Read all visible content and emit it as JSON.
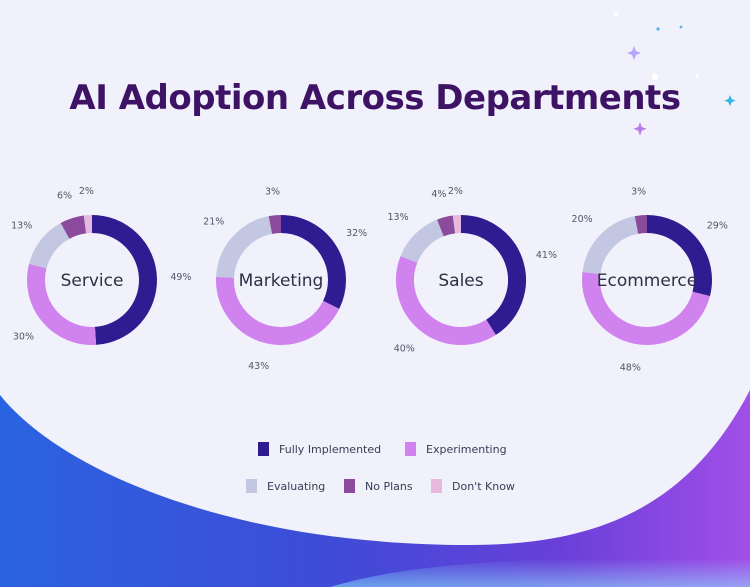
{
  "title": "AI Adoption Across Departments",
  "colors": {
    "fully_implemented": "#2f1c91",
    "experimenting": "#d083ee",
    "evaluating": "#c3c7e2",
    "no_plans": "#8b4a9b",
    "dont_know": "#e8b9de"
  },
  "legend": [
    {
      "label": "Fully Implemented",
      "color_key": "fully_implemented"
    },
    {
      "label": "Experimenting",
      "color_key": "experimenting"
    },
    {
      "label": "Evaluating",
      "color_key": "evaluating"
    },
    {
      "label": "No Plans",
      "color_key": "no_plans"
    },
    {
      "label": "Don't Know",
      "color_key": "dont_know"
    }
  ],
  "chart_data": [
    {
      "type": "pie",
      "center_label": "Service",
      "categories": [
        "Fully Implemented",
        "Experimenting",
        "Evaluating",
        "No Plans",
        "Don't Know"
      ],
      "values": [
        49,
        30,
        13,
        6,
        2
      ],
      "labels": [
        "49%",
        "30%",
        "13%",
        "6%",
        "2%"
      ]
    },
    {
      "type": "pie",
      "center_label": "Marketing",
      "categories": [
        "Fully Implemented",
        "Experimenting",
        "Evaluating",
        "No Plans"
      ],
      "values": [
        32,
        43,
        21,
        3
      ],
      "labels": [
        "32%",
        "43%",
        "21%",
        "3%"
      ]
    },
    {
      "type": "pie",
      "center_label": "Sales",
      "categories": [
        "Fully Implemented",
        "Experimenting",
        "Evaluating",
        "No Plans",
        "Don't Know"
      ],
      "values": [
        41,
        40,
        13,
        4,
        2
      ],
      "labels": [
        "41%",
        "40%",
        "13%",
        "4%",
        "2%"
      ]
    },
    {
      "type": "pie",
      "center_label": "Ecommerce",
      "categories": [
        "Fully Implemented",
        "Experimenting",
        "Evaluating",
        "No Plans"
      ],
      "values": [
        29,
        48,
        20,
        3
      ],
      "labels": [
        "29%",
        "48%",
        "20%",
        "3%"
      ]
    }
  ]
}
